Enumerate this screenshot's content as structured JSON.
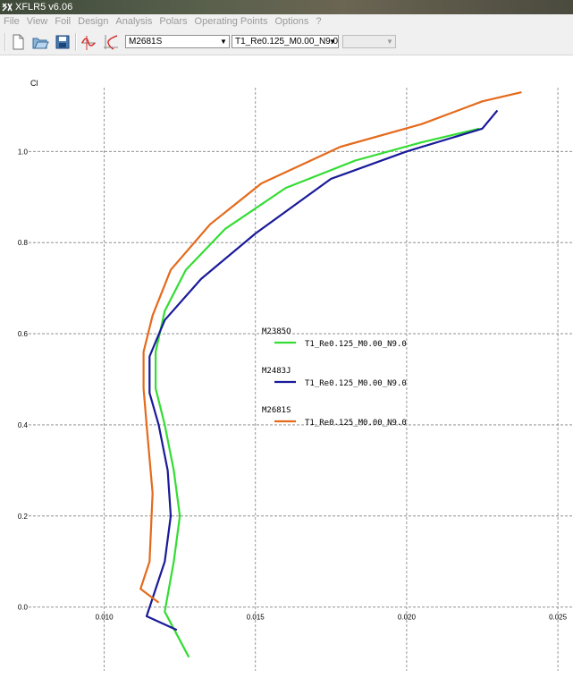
{
  "window": {
    "title": "XFLR5 v6.06"
  },
  "menu": [
    "File",
    "View",
    "Foil",
    "Design",
    "Analysis",
    "Polars",
    "Operating Points",
    "Options",
    "?"
  ],
  "toolbar": {
    "icons": [
      "new-document-icon",
      "open-folder-icon",
      "save-icon",
      "opp-view-icon",
      "polar-view-icon"
    ],
    "foil_select": "M2681S",
    "polar_select": "T1_Re0.125_M0.00_N9.0",
    "opp_select": ""
  },
  "chart_data": {
    "type": "line",
    "xlabel": "",
    "ylabel": "Cl",
    "xlim": [
      0.0075,
      0.0255
    ],
    "ylim": [
      -0.14,
      1.14
    ],
    "x_ticks": [
      "0.010",
      "0.015",
      "0.020",
      "0.025"
    ],
    "y_ticks": [
      "0.0",
      "0.2",
      "0.4",
      "0.6",
      "0.8",
      "1.0"
    ],
    "grid": true,
    "legend_position": "center",
    "series": [
      {
        "foil": "M2385O",
        "name": "T1_Re0.125_M0.00_N9.0",
        "color": "#33dd33",
        "x": [
          0.0128,
          0.012,
          0.0123,
          0.0125,
          0.0123,
          0.012,
          0.0117,
          0.0117,
          0.012,
          0.0127,
          0.014,
          0.016,
          0.0183,
          0.0205,
          0.0224
        ],
        "y": [
          -0.11,
          -0.01,
          0.1,
          0.2,
          0.3,
          0.4,
          0.48,
          0.56,
          0.65,
          0.74,
          0.83,
          0.92,
          0.98,
          1.02,
          1.05
        ]
      },
      {
        "foil": "M2483J",
        "name": "T1_Re0.125_M0.00_N9.0",
        "color": "#1a1a9a",
        "x": [
          0.0124,
          0.0114,
          0.012,
          0.0122,
          0.0121,
          0.0118,
          0.0115,
          0.0115,
          0.012,
          0.0132,
          0.015,
          0.0175,
          0.02,
          0.0225,
          0.023
        ],
        "y": [
          -0.05,
          -0.02,
          0.1,
          0.2,
          0.3,
          0.4,
          0.47,
          0.55,
          0.63,
          0.72,
          0.82,
          0.94,
          1.0,
          1.05,
          1.09
        ]
      },
      {
        "foil": "M2681S",
        "name": "T1_Re0.125_M0.00_N9.0",
        "color": "#e46a1c",
        "x": [
          0.0118,
          0.0112,
          0.0115,
          0.0116,
          0.0114,
          0.0113,
          0.0113,
          0.0116,
          0.0122,
          0.0135,
          0.0152,
          0.0178,
          0.0205,
          0.0225,
          0.0238
        ],
        "y": [
          0.01,
          0.04,
          0.1,
          0.25,
          0.4,
          0.48,
          0.56,
          0.64,
          0.74,
          0.84,
          0.93,
          1.01,
          1.06,
          1.11,
          1.13
        ]
      }
    ]
  }
}
